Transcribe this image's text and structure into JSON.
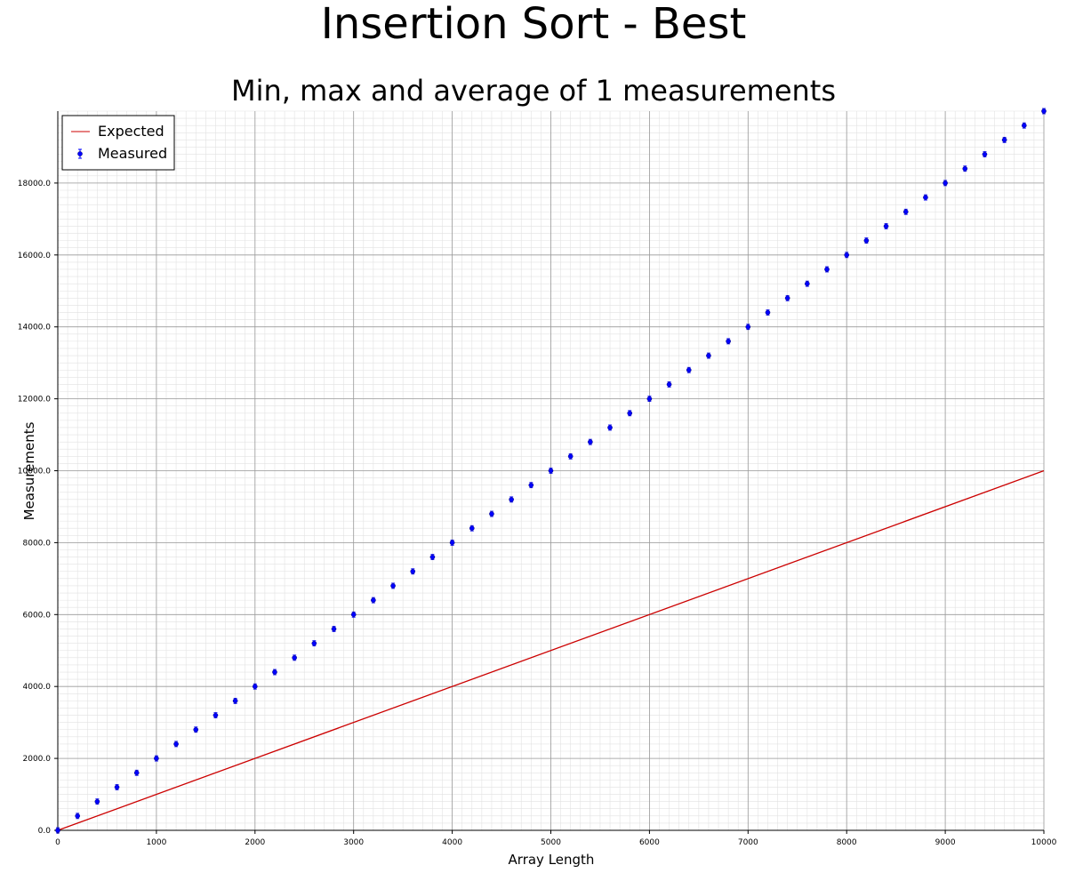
{
  "chart_data": {
    "type": "scatter",
    "title": "Insertion Sort - Best",
    "subtitle": "Min, max and average of 1 measurements",
    "xlabel": "Array Length",
    "ylabel": "Measurements",
    "xlim": [
      0,
      10000
    ],
    "ylim": [
      0,
      20000
    ],
    "x_ticks": [
      0,
      1000,
      2000,
      3000,
      4000,
      5000,
      6000,
      7000,
      8000,
      9000,
      10000
    ],
    "x_tick_labels": [
      "0",
      "1000",
      "2000",
      "3000",
      "4000",
      "5000",
      "6000",
      "7000",
      "8000",
      "9000",
      "10000"
    ],
    "y_ticks": [
      0,
      2000,
      4000,
      6000,
      8000,
      10000,
      12000,
      14000,
      16000,
      18000
    ],
    "y_tick_labels": [
      "0.0",
      "2000.0",
      "4000.0",
      "6000.0",
      "8000.0",
      "10000.0",
      "12000.0",
      "14000.0",
      "16000.0",
      "18000.0"
    ],
    "grid": true,
    "legend_position": "top-left",
    "series": [
      {
        "name": "Expected",
        "kind": "line",
        "color": "#cc0000",
        "x": [
          0,
          10000
        ],
        "y": [
          0,
          10000
        ]
      },
      {
        "name": "Measured",
        "kind": "points-with-error-bars",
        "color": "#0000ff",
        "x": [
          0,
          200,
          400,
          600,
          800,
          1000,
          1200,
          1400,
          1600,
          1800,
          2000,
          2200,
          2400,
          2600,
          2800,
          3000,
          3200,
          3400,
          3600,
          3800,
          4000,
          4200,
          4400,
          4600,
          4800,
          5000,
          5200,
          5400,
          5600,
          5800,
          6000,
          6200,
          6400,
          6600,
          6800,
          7000,
          7200,
          7400,
          7600,
          7800,
          8000,
          8200,
          8400,
          8600,
          8800,
          9000,
          9200,
          9400,
          9600,
          9800,
          10000
        ],
        "y": [
          0,
          400,
          800,
          1200,
          1600,
          2000,
          2400,
          2800,
          3200,
          3600,
          4000,
          4400,
          4800,
          5200,
          5600,
          6000,
          6400,
          6800,
          7200,
          7600,
          8000,
          8400,
          8800,
          9200,
          9600,
          10000,
          10400,
          10800,
          11200,
          11600,
          12000,
          12400,
          12800,
          13200,
          13600,
          14000,
          14400,
          14800,
          15200,
          15600,
          16000,
          16400,
          16800,
          17200,
          17600,
          18000,
          18400,
          18800,
          19200,
          19600,
          20000
        ]
      }
    ]
  }
}
